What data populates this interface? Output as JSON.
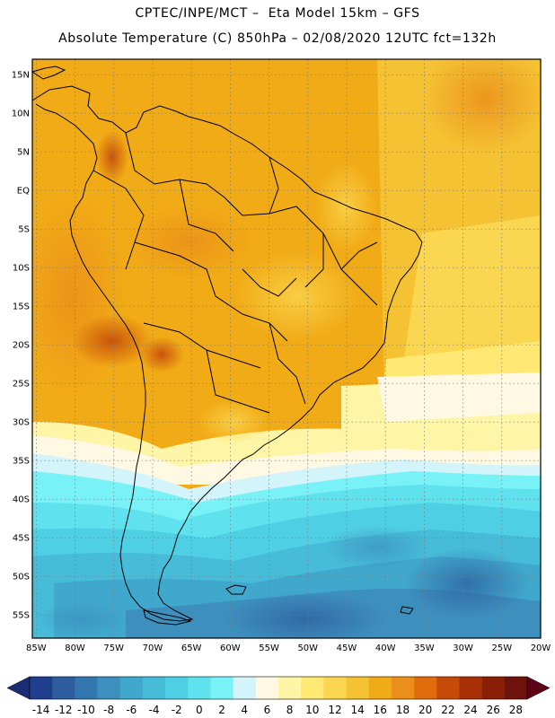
{
  "title": {
    "line1": "CPTEC/INPE/MCT –  Eta Model 15km – GFS",
    "line2": "Absolute Temperature (C) 850hPa – 02/08/2020 12UTC fct=132h"
  },
  "map": {
    "lat_labels": [
      "15N",
      "10N",
      "5N",
      "EQ",
      "5S",
      "10S",
      "15S",
      "20S",
      "25S",
      "30S",
      "35S",
      "40S",
      "45S",
      "50S",
      "55S"
    ],
    "lat_values": [
      15,
      10,
      5,
      0,
      -5,
      -10,
      -15,
      -20,
      -25,
      -30,
      -35,
      -40,
      -45,
      -50,
      -55
    ],
    "lon_labels": [
      "85W",
      "80W",
      "75W",
      "70W",
      "65W",
      "60W",
      "55W",
      "50W",
      "45W",
      "40W",
      "35W",
      "30W",
      "25W",
      "20W"
    ],
    "lon_values": [
      -85,
      -80,
      -75,
      -70,
      -65,
      -60,
      -55,
      -50,
      -45,
      -40,
      -35,
      -30,
      -25,
      -20
    ],
    "extent": {
      "lon_min": -85.5,
      "lon_max": -20,
      "lat_min": -58,
      "lat_max": 17
    }
  },
  "colorbar": {
    "labels": [
      "-14",
      "-12",
      "-10",
      "-8",
      "-6",
      "-4",
      "-2",
      "0",
      "2",
      "4",
      "6",
      "8",
      "10",
      "12",
      "14",
      "16",
      "18",
      "20",
      "22",
      "24",
      "26",
      "28"
    ],
    "colors": [
      "#1f3e8e",
      "#2d5d9e",
      "#3376b0",
      "#3d8fbe",
      "#40a8cc",
      "#46bcd8",
      "#4fcfe4",
      "#5fe2ee",
      "#78f2f6",
      "#d2f4fa",
      "#fff8e2",
      "#fff5a6",
      "#ffe873",
      "#fbd650",
      "#f5c233",
      "#f1ab16",
      "#ea8f1a",
      "#e06c0c",
      "#c64a08",
      "#a83006",
      "#8a1f08",
      "#6e120c"
    ],
    "under_color": "#1a2d73",
    "over_color": "#5e0218"
  }
}
